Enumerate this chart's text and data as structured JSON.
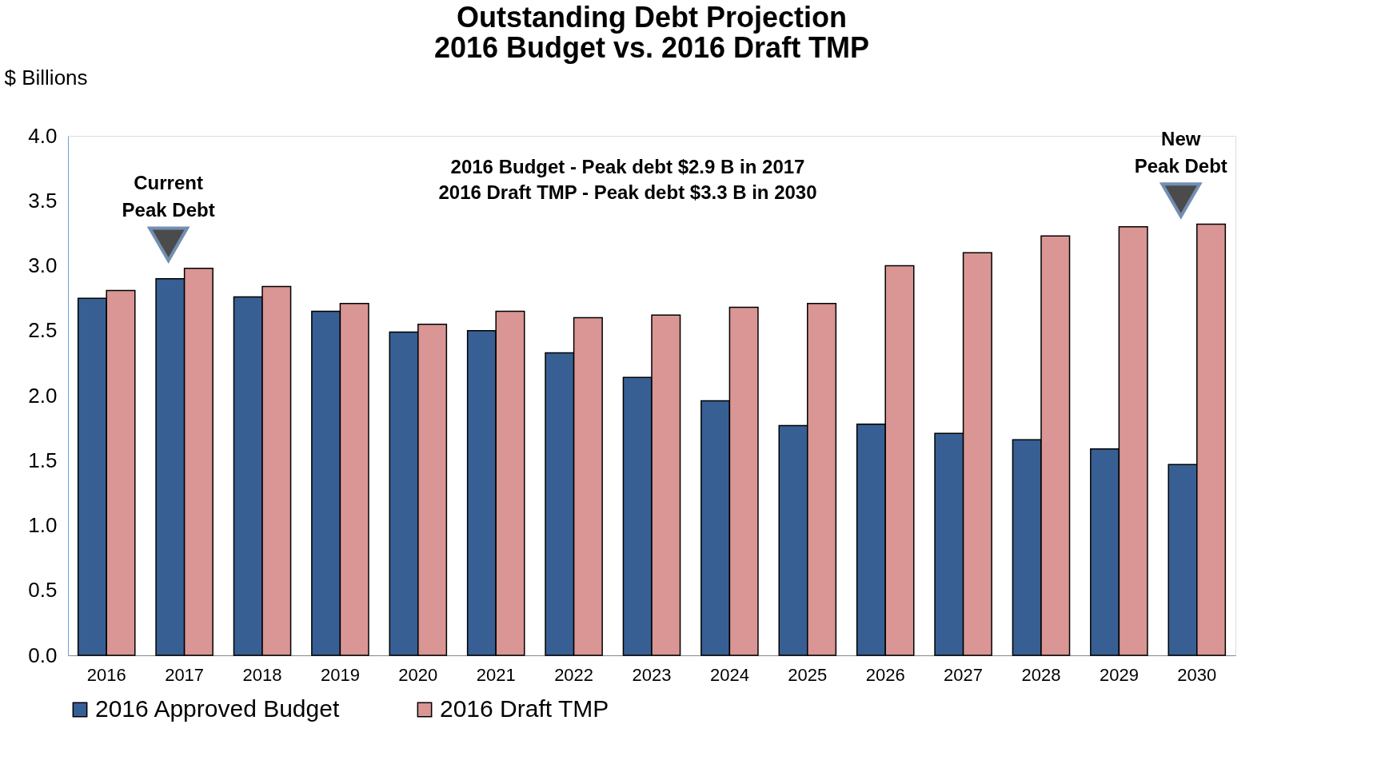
{
  "chart_data": {
    "type": "bar",
    "title": [
      "Outstanding Debt Projection",
      "2016 Budget vs. 2016 Draft TMP"
    ],
    "ylabel": "$ Billions",
    "categories": [
      "2016",
      "2017",
      "2018",
      "2019",
      "2020",
      "2021",
      "2022",
      "2023",
      "2024",
      "2025",
      "2026",
      "2027",
      "2028",
      "2029",
      "2030"
    ],
    "series": [
      {
        "name": "2016 Approved Budget",
        "color": "#375f93",
        "values": [
          2.75,
          2.9,
          2.76,
          2.65,
          2.49,
          2.5,
          2.33,
          2.14,
          1.96,
          1.77,
          1.78,
          1.71,
          1.66,
          1.59,
          1.47
        ]
      },
      {
        "name": "2016 Draft TMP",
        "color": "#d99694",
        "values": [
          2.81,
          2.98,
          2.84,
          2.71,
          2.55,
          2.65,
          2.6,
          2.62,
          2.68,
          2.71,
          3.0,
          3.1,
          3.23,
          3.3,
          3.32
        ]
      }
    ],
    "ylim": [
      0,
      4
    ],
    "yticks": [
      {
        "value": 0,
        "label": "0.0"
      },
      {
        "value": 0.5,
        "label": "0.5"
      },
      {
        "value": 1,
        "label": "1.0"
      },
      {
        "value": 1.5,
        "label": "1.5"
      },
      {
        "value": 2,
        "label": "2.0"
      },
      {
        "value": 2.5,
        "label": "2.5"
      },
      {
        "value": 3,
        "label": "3.0"
      },
      {
        "value": 3.5,
        "label": "3.5"
      },
      {
        "value": 4,
        "label": "4.0"
      }
    ],
    "grid": false,
    "legend": "bottom",
    "annotations": [
      "2016 Budget - Peak debt $2.9 B in 2017",
      "2016 Draft TMP - Peak debt $3.3 B in 2030",
      {
        "text": "Current Peak Debt",
        "x": "2017",
        "y": 2.98
      },
      {
        "text": "New Peak Debt",
        "x": "2030",
        "y": 3.32
      }
    ]
  }
}
